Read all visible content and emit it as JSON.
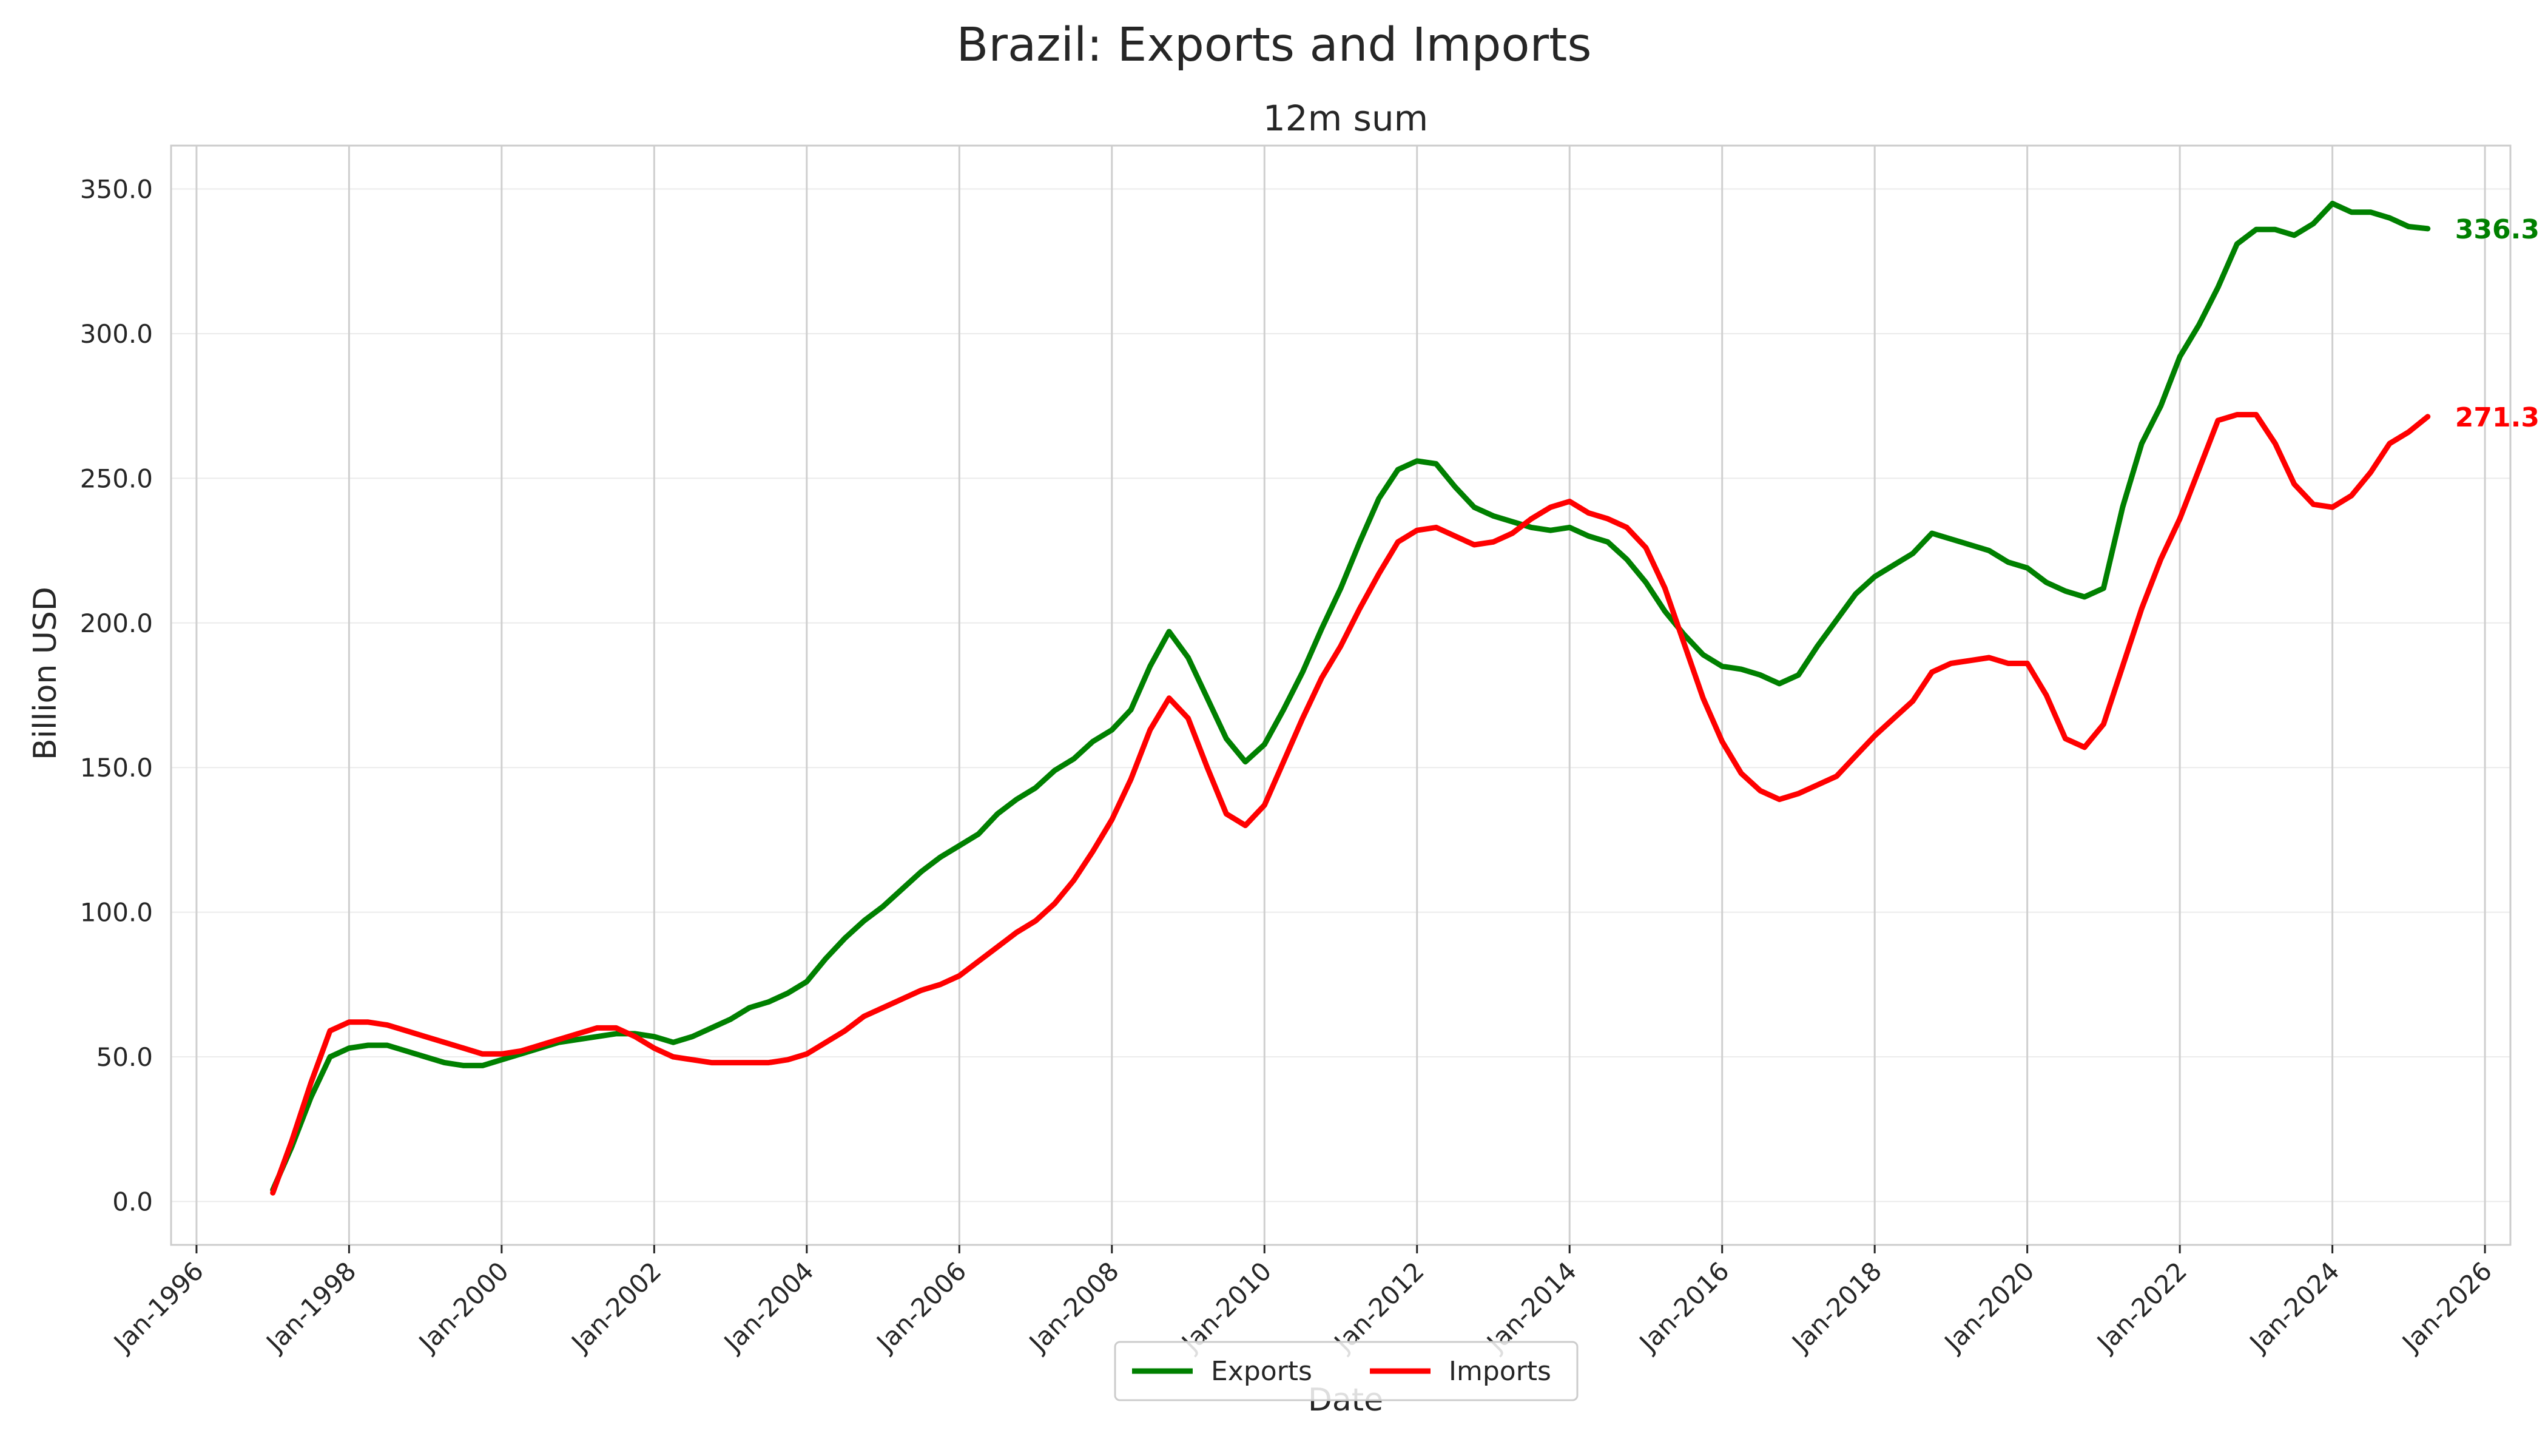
{
  "chart_data": {
    "type": "line",
    "title": "Brazil: Exports and Imports",
    "subtitle": "12m sum",
    "xlabel": "Date",
    "ylabel": "Billion USD",
    "xlim": [
      "1995-09",
      "2026-05"
    ],
    "ylim": [
      -15,
      365
    ],
    "x_ticks": [
      "Jan-1996",
      "Jan-1998",
      "Jan-2000",
      "Jan-2002",
      "Jan-2004",
      "Jan-2006",
      "Jan-2008",
      "Jan-2010",
      "Jan-2012",
      "Jan-2014",
      "Jan-2016",
      "Jan-2018",
      "Jan-2020",
      "Jan-2022",
      "Jan-2024",
      "Jan-2026"
    ],
    "y_ticks": [
      "0.0",
      "50.0",
      "100.0",
      "150.0",
      "200.0",
      "250.0",
      "300.0",
      "350.0"
    ],
    "grid": true,
    "legend_position": "bottom-center",
    "series": [
      {
        "name": "Exports",
        "color": "#008000",
        "end_label": "336.3",
        "points": [
          [
            "1997-01",
            4
          ],
          [
            "1997-04",
            19
          ],
          [
            "1997-07",
            36
          ],
          [
            "1997-10",
            50
          ],
          [
            "1998-01",
            53
          ],
          [
            "1998-04",
            54
          ],
          [
            "1998-07",
            54
          ],
          [
            "1998-10",
            52
          ],
          [
            "1999-01",
            50
          ],
          [
            "1999-04",
            48
          ],
          [
            "1999-07",
            47
          ],
          [
            "1999-10",
            47
          ],
          [
            "2000-01",
            49
          ],
          [
            "2000-04",
            51
          ],
          [
            "2000-07",
            53
          ],
          [
            "2000-10",
            55
          ],
          [
            "2001-01",
            56
          ],
          [
            "2001-04",
            57
          ],
          [
            "2001-07",
            58
          ],
          [
            "2001-10",
            58
          ],
          [
            "2002-01",
            57
          ],
          [
            "2002-04",
            55
          ],
          [
            "2002-07",
            57
          ],
          [
            "2002-10",
            60
          ],
          [
            "2003-01",
            63
          ],
          [
            "2003-04",
            67
          ],
          [
            "2003-07",
            69
          ],
          [
            "2003-10",
            72
          ],
          [
            "2004-01",
            76
          ],
          [
            "2004-04",
            84
          ],
          [
            "2004-07",
            91
          ],
          [
            "2004-10",
            97
          ],
          [
            "2005-01",
            102
          ],
          [
            "2005-04",
            108
          ],
          [
            "2005-07",
            114
          ],
          [
            "2005-10",
            119
          ],
          [
            "2006-01",
            123
          ],
          [
            "2006-04",
            127
          ],
          [
            "2006-07",
            134
          ],
          [
            "2006-10",
            139
          ],
          [
            "2007-01",
            143
          ],
          [
            "2007-04",
            149
          ],
          [
            "2007-07",
            153
          ],
          [
            "2007-10",
            159
          ],
          [
            "2008-01",
            163
          ],
          [
            "2008-04",
            170
          ],
          [
            "2008-07",
            185
          ],
          [
            "2008-10",
            197
          ],
          [
            "2009-01",
            188
          ],
          [
            "2009-04",
            174
          ],
          [
            "2009-07",
            160
          ],
          [
            "2009-10",
            152
          ],
          [
            "2010-01",
            158
          ],
          [
            "2010-04",
            170
          ],
          [
            "2010-07",
            183
          ],
          [
            "2010-10",
            198
          ],
          [
            "2011-01",
            212
          ],
          [
            "2011-04",
            228
          ],
          [
            "2011-07",
            243
          ],
          [
            "2011-10",
            253
          ],
          [
            "2012-01",
            256
          ],
          [
            "2012-04",
            255
          ],
          [
            "2012-07",
            247
          ],
          [
            "2012-10",
            240
          ],
          [
            "2013-01",
            237
          ],
          [
            "2013-04",
            235
          ],
          [
            "2013-07",
            233
          ],
          [
            "2013-10",
            232
          ],
          [
            "2014-01",
            233
          ],
          [
            "2014-04",
            230
          ],
          [
            "2014-07",
            228
          ],
          [
            "2014-10",
            222
          ],
          [
            "2015-01",
            214
          ],
          [
            "2015-04",
            204
          ],
          [
            "2015-07",
            196
          ],
          [
            "2015-10",
            189
          ],
          [
            "2016-01",
            185
          ],
          [
            "2016-04",
            184
          ],
          [
            "2016-07",
            182
          ],
          [
            "2016-10",
            179
          ],
          [
            "2017-01",
            182
          ],
          [
            "2017-04",
            192
          ],
          [
            "2017-07",
            201
          ],
          [
            "2017-10",
            210
          ],
          [
            "2018-01",
            216
          ],
          [
            "2018-04",
            220
          ],
          [
            "2018-07",
            224
          ],
          [
            "2018-10",
            231
          ],
          [
            "2019-01",
            229
          ],
          [
            "2019-04",
            227
          ],
          [
            "2019-07",
            225
          ],
          [
            "2019-10",
            221
          ],
          [
            "2020-01",
            219
          ],
          [
            "2020-04",
            214
          ],
          [
            "2020-07",
            211
          ],
          [
            "2020-10",
            209
          ],
          [
            "2021-01",
            212
          ],
          [
            "2021-04",
            240
          ],
          [
            "2021-07",
            262
          ],
          [
            "2021-10",
            275
          ],
          [
            "2022-01",
            292
          ],
          [
            "2022-04",
            303
          ],
          [
            "2022-07",
            316
          ],
          [
            "2022-10",
            331
          ],
          [
            "2023-01",
            336
          ],
          [
            "2023-04",
            336
          ],
          [
            "2023-07",
            334
          ],
          [
            "2023-10",
            338
          ],
          [
            "2024-01",
            345
          ],
          [
            "2024-04",
            342
          ],
          [
            "2024-07",
            342
          ],
          [
            "2024-10",
            340
          ],
          [
            "2025-01",
            337
          ],
          [
            "2025-04",
            336.3
          ]
        ]
      },
      {
        "name": "Imports",
        "color": "#ff0000",
        "end_label": "271.3",
        "points": [
          [
            "1997-01",
            3
          ],
          [
            "1997-04",
            21
          ],
          [
            "1997-07",
            41
          ],
          [
            "1997-10",
            59
          ],
          [
            "1998-01",
            62
          ],
          [
            "1998-04",
            62
          ],
          [
            "1998-07",
            61
          ],
          [
            "1998-10",
            59
          ],
          [
            "1999-01",
            57
          ],
          [
            "1999-04",
            55
          ],
          [
            "1999-07",
            53
          ],
          [
            "1999-10",
            51
          ],
          [
            "2000-01",
            51
          ],
          [
            "2000-04",
            52
          ],
          [
            "2000-07",
            54
          ],
          [
            "2000-10",
            56
          ],
          [
            "2001-01",
            58
          ],
          [
            "2001-04",
            60
          ],
          [
            "2001-07",
            60
          ],
          [
            "2001-10",
            57
          ],
          [
            "2002-01",
            53
          ],
          [
            "2002-04",
            50
          ],
          [
            "2002-07",
            49
          ],
          [
            "2002-10",
            48
          ],
          [
            "2003-01",
            48
          ],
          [
            "2003-04",
            48
          ],
          [
            "2003-07",
            48
          ],
          [
            "2003-10",
            49
          ],
          [
            "2004-01",
            51
          ],
          [
            "2004-04",
            55
          ],
          [
            "2004-07",
            59
          ],
          [
            "2004-10",
            64
          ],
          [
            "2005-01",
            67
          ],
          [
            "2005-04",
            70
          ],
          [
            "2005-07",
            73
          ],
          [
            "2005-10",
            75
          ],
          [
            "2006-01",
            78
          ],
          [
            "2006-04",
            83
          ],
          [
            "2006-07",
            88
          ],
          [
            "2006-10",
            93
          ],
          [
            "2007-01",
            97
          ],
          [
            "2007-04",
            103
          ],
          [
            "2007-07",
            111
          ],
          [
            "2007-10",
            121
          ],
          [
            "2008-01",
            132
          ],
          [
            "2008-04",
            146
          ],
          [
            "2008-07",
            163
          ],
          [
            "2008-10",
            174
          ],
          [
            "2009-01",
            167
          ],
          [
            "2009-04",
            150
          ],
          [
            "2009-07",
            134
          ],
          [
            "2009-10",
            130
          ],
          [
            "2010-01",
            137
          ],
          [
            "2010-04",
            152
          ],
          [
            "2010-07",
            167
          ],
          [
            "2010-10",
            181
          ],
          [
            "2011-01",
            192
          ],
          [
            "2011-04",
            205
          ],
          [
            "2011-07",
            217
          ],
          [
            "2011-10",
            228
          ],
          [
            "2012-01",
            232
          ],
          [
            "2012-04",
            233
          ],
          [
            "2012-07",
            230
          ],
          [
            "2012-10",
            227
          ],
          [
            "2013-01",
            228
          ],
          [
            "2013-04",
            231
          ],
          [
            "2013-07",
            236
          ],
          [
            "2013-10",
            240
          ],
          [
            "2014-01",
            242
          ],
          [
            "2014-04",
            238
          ],
          [
            "2014-07",
            236
          ],
          [
            "2014-10",
            233
          ],
          [
            "2015-01",
            226
          ],
          [
            "2015-04",
            212
          ],
          [
            "2015-07",
            193
          ],
          [
            "2015-10",
            174
          ],
          [
            "2016-01",
            159
          ],
          [
            "2016-04",
            148
          ],
          [
            "2016-07",
            142
          ],
          [
            "2016-10",
            139
          ],
          [
            "2017-01",
            141
          ],
          [
            "2017-04",
            144
          ],
          [
            "2017-07",
            147
          ],
          [
            "2017-10",
            154
          ],
          [
            "2018-01",
            161
          ],
          [
            "2018-04",
            167
          ],
          [
            "2018-07",
            173
          ],
          [
            "2018-10",
            183
          ],
          [
            "2019-01",
            186
          ],
          [
            "2019-04",
            187
          ],
          [
            "2019-07",
            188
          ],
          [
            "2019-10",
            186
          ],
          [
            "2020-01",
            186
          ],
          [
            "2020-04",
            175
          ],
          [
            "2020-07",
            160
          ],
          [
            "2020-10",
            157
          ],
          [
            "2021-01",
            165
          ],
          [
            "2021-04",
            185
          ],
          [
            "2021-07",
            205
          ],
          [
            "2021-10",
            222
          ],
          [
            "2022-01",
            236
          ],
          [
            "2022-04",
            253
          ],
          [
            "2022-07",
            270
          ],
          [
            "2022-10",
            272
          ],
          [
            "2023-01",
            272
          ],
          [
            "2023-04",
            262
          ],
          [
            "2023-07",
            248
          ],
          [
            "2023-10",
            241
          ],
          [
            "2024-01",
            240
          ],
          [
            "2024-04",
            244
          ],
          [
            "2024-07",
            252
          ],
          [
            "2024-10",
            262
          ],
          [
            "2025-01",
            266
          ],
          [
            "2025-04",
            271.3
          ]
        ]
      }
    ]
  }
}
